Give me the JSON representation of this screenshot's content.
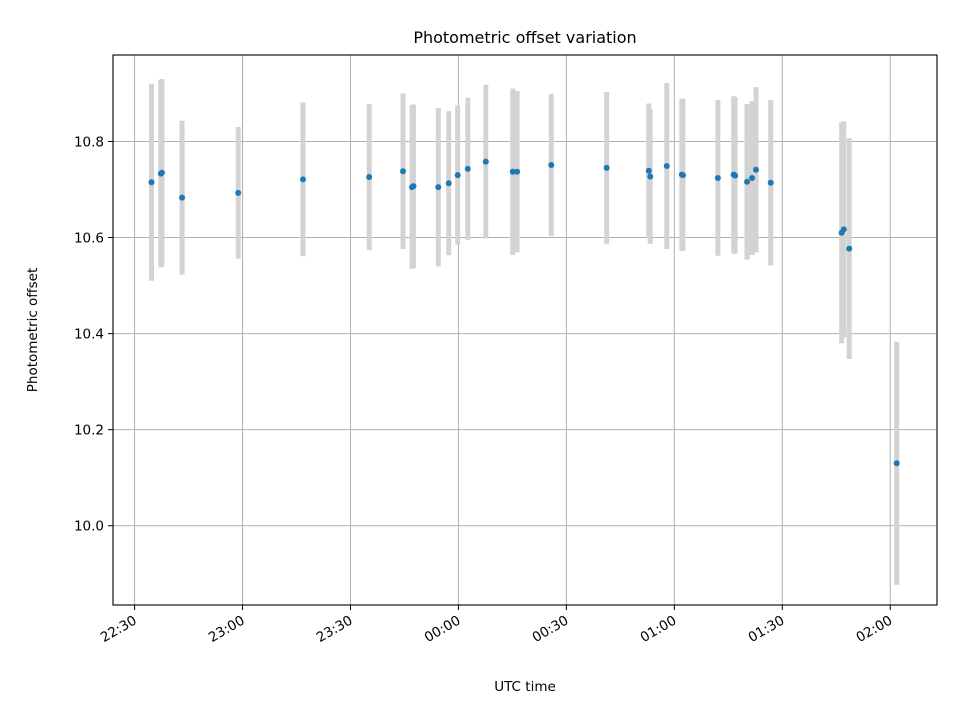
{
  "chart_data": {
    "type": "scatter",
    "title": "Photometric offset variation",
    "xlabel": "UTC time",
    "ylabel": "Photometric offset",
    "grid": true,
    "x_unit": "minutes",
    "xlim": [
      -6,
      223
    ],
    "ylim": [
      9.835,
      10.98
    ],
    "xticks": [
      {
        "value": 0,
        "label": "22:30"
      },
      {
        "value": 30,
        "label": "23:00"
      },
      {
        "value": 60,
        "label": "23:30"
      },
      {
        "value": 90,
        "label": "00:00"
      },
      {
        "value": 120,
        "label": "00:30"
      },
      {
        "value": 150,
        "label": "01:00"
      },
      {
        "value": 180,
        "label": "01:30"
      },
      {
        "value": 210,
        "label": "02:00"
      }
    ],
    "yticks": [
      {
        "value": 10.0,
        "label": "10.0"
      },
      {
        "value": 10.2,
        "label": "10.2"
      },
      {
        "value": 10.4,
        "label": "10.4"
      },
      {
        "value": 10.6,
        "label": "10.6"
      },
      {
        "value": 10.8,
        "label": "10.8"
      }
    ],
    "series": [
      {
        "marker_color": "#1f77b4",
        "errorbar_color": "#d3d3d3",
        "points": [
          {
            "x": 4.7,
            "y": 10.715,
            "err": 0.205
          },
          {
            "x": 7.3,
            "y": 10.733,
            "err": 0.195
          },
          {
            "x": 7.6,
            "y": 10.735,
            "err": 0.195
          },
          {
            "x": 13.2,
            "y": 10.683,
            "err": 0.16
          },
          {
            "x": 28.8,
            "y": 10.693,
            "err": 0.137
          },
          {
            "x": 46.8,
            "y": 10.721,
            "err": 0.16
          },
          {
            "x": 65.2,
            "y": 10.726,
            "err": 0.152
          },
          {
            "x": 74.6,
            "y": 10.738,
            "err": 0.162
          },
          {
            "x": 77.1,
            "y": 10.705,
            "err": 0.17
          },
          {
            "x": 77.5,
            "y": 10.707,
            "err": 0.17
          },
          {
            "x": 84.4,
            "y": 10.705,
            "err": 0.165
          },
          {
            "x": 87.3,
            "y": 10.713,
            "err": 0.15
          },
          {
            "x": 89.8,
            "y": 10.73,
            "err": 0.145
          },
          {
            "x": 92.6,
            "y": 10.743,
            "err": 0.148
          },
          {
            "x": 97.6,
            "y": 10.758,
            "err": 0.16
          },
          {
            "x": 105.1,
            "y": 10.737,
            "err": 0.173
          },
          {
            "x": 106.3,
            "y": 10.737,
            "err": 0.168
          },
          {
            "x": 115.8,
            "y": 10.751,
            "err": 0.148
          },
          {
            "x": 131.2,
            "y": 10.745,
            "err": 0.158
          },
          {
            "x": 142.9,
            "y": 10.739,
            "err": 0.14
          },
          {
            "x": 143.3,
            "y": 10.727,
            "err": 0.14
          },
          {
            "x": 147.9,
            "y": 10.749,
            "err": 0.173
          },
          {
            "x": 152.1,
            "y": 10.731,
            "err": 0.158
          },
          {
            "x": 152.4,
            "y": 10.73,
            "err": 0.158
          },
          {
            "x": 162.1,
            "y": 10.724,
            "err": 0.162
          },
          {
            "x": 166.5,
            "y": 10.731,
            "err": 0.163
          },
          {
            "x": 166.9,
            "y": 10.729,
            "err": 0.163
          },
          {
            "x": 170.2,
            "y": 10.716,
            "err": 0.162
          },
          {
            "x": 171.6,
            "y": 10.724,
            "err": 0.16
          },
          {
            "x": 172.7,
            "y": 10.741,
            "err": 0.172
          },
          {
            "x": 176.8,
            "y": 10.714,
            "err": 0.172
          },
          {
            "x": 196.5,
            "y": 10.61,
            "err": 0.23
          },
          {
            "x": 197.1,
            "y": 10.617,
            "err": 0.225
          },
          {
            "x": 198.6,
            "y": 10.577,
            "err": 0.23
          },
          {
            "x": 211.8,
            "y": 10.13,
            "err": 0.253
          }
        ]
      }
    ]
  }
}
